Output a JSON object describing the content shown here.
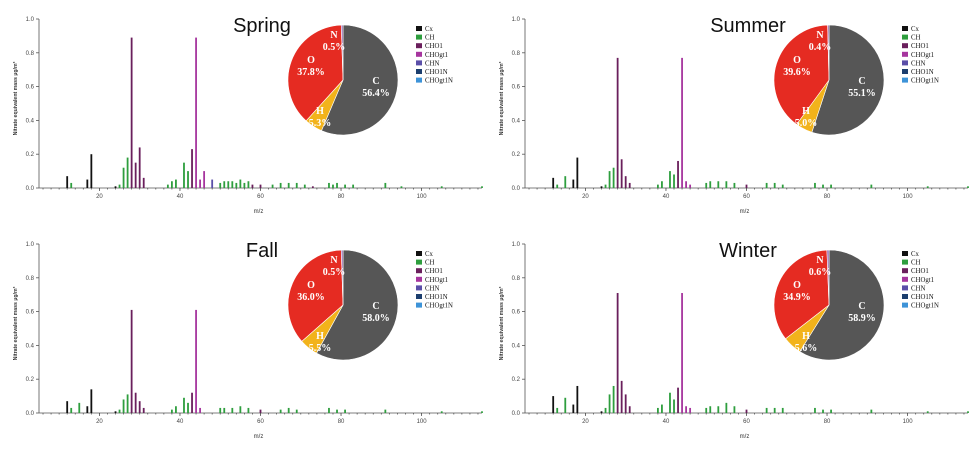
{
  "colors": {
    "Cx": "#111111",
    "CH": "#2e9e3e",
    "CHO1": "#6a1f5c",
    "CHOgt1": "#a6359e",
    "CHN": "#5a4ea8",
    "CHO1N": "#1c3e6e",
    "CHOgt1N": "#3d93d8",
    "pie_C": "#565656",
    "pie_H": "#f2b31b",
    "pie_O": "#e52b22",
    "pie_N": "#8a5aa8"
  },
  "legend": [
    "Cx",
    "CH",
    "CHO1",
    "CHOgt1",
    "CHN",
    "CHO1N",
    "CHOgt1N"
  ],
  "chart_data": [
    {
      "type": "bar",
      "title": "Spring",
      "ylabel": "Nitrate equivalent mass µg/m³",
      "xlabel": "m/z",
      "ylim": [
        0,
        1.0
      ],
      "xlim": [
        5,
        115
      ],
      "yticks": [
        "0.0",
        "0.2",
        "0.4",
        "0.6",
        "0.8",
        "1.0"
      ],
      "xticks": [
        "20",
        "40",
        "60",
        "80",
        "100"
      ],
      "bars": [
        {
          "mz": 12,
          "value": 0.07,
          "family": "Cx"
        },
        {
          "mz": 13,
          "value": 0.03,
          "family": "CH"
        },
        {
          "mz": 17,
          "value": 0.05,
          "family": "Cx"
        },
        {
          "mz": 18,
          "value": 0.2,
          "family": "Cx"
        },
        {
          "mz": 24,
          "value": 0.01,
          "family": "Cx"
        },
        {
          "mz": 25,
          "value": 0.02,
          "family": "CH"
        },
        {
          "mz": 26,
          "value": 0.12,
          "family": "CH"
        },
        {
          "mz": 27,
          "value": 0.18,
          "family": "CH"
        },
        {
          "mz": 28,
          "value": 0.89,
          "family": "CHO1"
        },
        {
          "mz": 29,
          "value": 0.15,
          "family": "CHO1"
        },
        {
          "mz": 30,
          "value": 0.24,
          "family": "CHO1"
        },
        {
          "mz": 31,
          "value": 0.06,
          "family": "CHO1"
        },
        {
          "mz": 37,
          "value": 0.02,
          "family": "CH"
        },
        {
          "mz": 38,
          "value": 0.04,
          "family": "CH"
        },
        {
          "mz": 39,
          "value": 0.05,
          "family": "CH"
        },
        {
          "mz": 41,
          "value": 0.15,
          "family": "CH"
        },
        {
          "mz": 42,
          "value": 0.1,
          "family": "CH"
        },
        {
          "mz": 43,
          "value": 0.23,
          "family": "CHO1"
        },
        {
          "mz": 44,
          "value": 0.89,
          "family": "CHOgt1"
        },
        {
          "mz": 45,
          "value": 0.05,
          "family": "CHOgt1"
        },
        {
          "mz": 46,
          "value": 0.1,
          "family": "CHOgt1"
        },
        {
          "mz": 48,
          "value": 0.05,
          "family": "CHN"
        },
        {
          "mz": 50,
          "value": 0.03,
          "family": "CH"
        },
        {
          "mz": 51,
          "value": 0.04,
          "family": "CH"
        },
        {
          "mz": 52,
          "value": 0.04,
          "family": "CH"
        },
        {
          "mz": 53,
          "value": 0.04,
          "family": "CH"
        },
        {
          "mz": 54,
          "value": 0.03,
          "family": "CH"
        },
        {
          "mz": 55,
          "value": 0.05,
          "family": "CH"
        },
        {
          "mz": 56,
          "value": 0.03,
          "family": "CH"
        },
        {
          "mz": 57,
          "value": 0.04,
          "family": "CH"
        },
        {
          "mz": 58,
          "value": 0.02,
          "family": "CHO1"
        },
        {
          "mz": 60,
          "value": 0.02,
          "family": "CHO1"
        },
        {
          "mz": 63,
          "value": 0.02,
          "family": "CH"
        },
        {
          "mz": 65,
          "value": 0.03,
          "family": "CH"
        },
        {
          "mz": 67,
          "value": 0.03,
          "family": "CH"
        },
        {
          "mz": 69,
          "value": 0.03,
          "family": "CH"
        },
        {
          "mz": 71,
          "value": 0.02,
          "family": "CH"
        },
        {
          "mz": 73,
          "value": 0.01,
          "family": "CHO1"
        },
        {
          "mz": 77,
          "value": 0.03,
          "family": "CH"
        },
        {
          "mz": 78,
          "value": 0.02,
          "family": "CH"
        },
        {
          "mz": 79,
          "value": 0.03,
          "family": "CH"
        },
        {
          "mz": 81,
          "value": 0.02,
          "family": "CH"
        },
        {
          "mz": 83,
          "value": 0.02,
          "family": "CH"
        },
        {
          "mz": 91,
          "value": 0.03,
          "family": "CH"
        },
        {
          "mz": 95,
          "value": 0.01,
          "family": "CH"
        },
        {
          "mz": 105,
          "value": 0.01,
          "family": "CH"
        },
        {
          "mz": 115,
          "value": 0.01,
          "family": "CH"
        }
      ],
      "pie": [
        {
          "label": "C",
          "value": 56.4,
          "pct": "56.4%"
        },
        {
          "label": "H",
          "value": 5.3,
          "pct": "5.3%"
        },
        {
          "label": "O",
          "value": 37.8,
          "pct": "37.8%"
        },
        {
          "label": "N",
          "value": 0.5,
          "pct": "0.5%"
        }
      ]
    },
    {
      "type": "bar",
      "title": "Summer",
      "ylabel": "Nitrate equivalent mass µg/m³",
      "xlabel": "m/z",
      "ylim": [
        0,
        1.0
      ],
      "xlim": [
        5,
        115
      ],
      "yticks": [
        "0.0",
        "0.2",
        "0.4",
        "0.6",
        "0.8",
        "1.0"
      ],
      "xticks": [
        "20",
        "40",
        "60",
        "80",
        "100"
      ],
      "bars": [
        {
          "mz": 12,
          "value": 0.06,
          "family": "Cx"
        },
        {
          "mz": 13,
          "value": 0.02,
          "family": "CH"
        },
        {
          "mz": 15,
          "value": 0.07,
          "family": "CH"
        },
        {
          "mz": 17,
          "value": 0.05,
          "family": "Cx"
        },
        {
          "mz": 18,
          "value": 0.18,
          "family": "Cx"
        },
        {
          "mz": 24,
          "value": 0.01,
          "family": "Cx"
        },
        {
          "mz": 25,
          "value": 0.02,
          "family": "CH"
        },
        {
          "mz": 26,
          "value": 0.1,
          "family": "CH"
        },
        {
          "mz": 27,
          "value": 0.12,
          "family": "CH"
        },
        {
          "mz": 28,
          "value": 0.77,
          "family": "CHO1"
        },
        {
          "mz": 29,
          "value": 0.17,
          "family": "CHO1"
        },
        {
          "mz": 30,
          "value": 0.07,
          "family": "CHO1"
        },
        {
          "mz": 31,
          "value": 0.03,
          "family": "CHO1"
        },
        {
          "mz": 38,
          "value": 0.02,
          "family": "CH"
        },
        {
          "mz": 39,
          "value": 0.04,
          "family": "CH"
        },
        {
          "mz": 41,
          "value": 0.1,
          "family": "CH"
        },
        {
          "mz": 42,
          "value": 0.08,
          "family": "CH"
        },
        {
          "mz": 43,
          "value": 0.16,
          "family": "CHO1"
        },
        {
          "mz": 44,
          "value": 0.77,
          "family": "CHOgt1"
        },
        {
          "mz": 45,
          "value": 0.04,
          "family": "CHOgt1"
        },
        {
          "mz": 46,
          "value": 0.02,
          "family": "CHOgt1"
        },
        {
          "mz": 50,
          "value": 0.03,
          "family": "CH"
        },
        {
          "mz": 51,
          "value": 0.04,
          "family": "CH"
        },
        {
          "mz": 53,
          "value": 0.04,
          "family": "CH"
        },
        {
          "mz": 55,
          "value": 0.04,
          "family": "CH"
        },
        {
          "mz": 57,
          "value": 0.03,
          "family": "CH"
        },
        {
          "mz": 60,
          "value": 0.02,
          "family": "CHO1"
        },
        {
          "mz": 65,
          "value": 0.03,
          "family": "CH"
        },
        {
          "mz": 67,
          "value": 0.03,
          "family": "CH"
        },
        {
          "mz": 69,
          "value": 0.02,
          "family": "CH"
        },
        {
          "mz": 77,
          "value": 0.03,
          "family": "CH"
        },
        {
          "mz": 79,
          "value": 0.02,
          "family": "CH"
        },
        {
          "mz": 81,
          "value": 0.02,
          "family": "CH"
        },
        {
          "mz": 91,
          "value": 0.02,
          "family": "CH"
        },
        {
          "mz": 105,
          "value": 0.01,
          "family": "CH"
        },
        {
          "mz": 115,
          "value": 0.01,
          "family": "CH"
        }
      ],
      "pie": [
        {
          "label": "C",
          "value": 55.1,
          "pct": "55.1%"
        },
        {
          "label": "H",
          "value": 5.0,
          "pct": "5.0%"
        },
        {
          "label": "O",
          "value": 39.6,
          "pct": "39.6%"
        },
        {
          "label": "N",
          "value": 0.4,
          "pct": "0.4%"
        }
      ]
    },
    {
      "type": "bar",
      "title": "Fall",
      "ylabel": "Nitrate equivalent mass µg/m³",
      "xlabel": "m/z",
      "ylim": [
        0,
        1.0
      ],
      "xlim": [
        5,
        115
      ],
      "yticks": [
        "0.0",
        "0.2",
        "0.4",
        "0.6",
        "0.8",
        "1.0"
      ],
      "xticks": [
        "20",
        "40",
        "60",
        "80",
        "100"
      ],
      "bars": [
        {
          "mz": 12,
          "value": 0.07,
          "family": "Cx"
        },
        {
          "mz": 13,
          "value": 0.03,
          "family": "CH"
        },
        {
          "mz": 15,
          "value": 0.06,
          "family": "CH"
        },
        {
          "mz": 17,
          "value": 0.04,
          "family": "Cx"
        },
        {
          "mz": 18,
          "value": 0.14,
          "family": "Cx"
        },
        {
          "mz": 24,
          "value": 0.01,
          "family": "Cx"
        },
        {
          "mz": 25,
          "value": 0.02,
          "family": "CH"
        },
        {
          "mz": 26,
          "value": 0.08,
          "family": "CH"
        },
        {
          "mz": 27,
          "value": 0.11,
          "family": "CH"
        },
        {
          "mz": 28,
          "value": 0.61,
          "family": "CHO1"
        },
        {
          "mz": 29,
          "value": 0.12,
          "family": "CHO1"
        },
        {
          "mz": 30,
          "value": 0.07,
          "family": "CHO1"
        },
        {
          "mz": 31,
          "value": 0.03,
          "family": "CHO1"
        },
        {
          "mz": 38,
          "value": 0.02,
          "family": "CH"
        },
        {
          "mz": 39,
          "value": 0.04,
          "family": "CH"
        },
        {
          "mz": 41,
          "value": 0.09,
          "family": "CH"
        },
        {
          "mz": 42,
          "value": 0.06,
          "family": "CH"
        },
        {
          "mz": 43,
          "value": 0.12,
          "family": "CHO1"
        },
        {
          "mz": 44,
          "value": 0.61,
          "family": "CHOgt1"
        },
        {
          "mz": 45,
          "value": 0.03,
          "family": "CHOgt1"
        },
        {
          "mz": 50,
          "value": 0.03,
          "family": "CH"
        },
        {
          "mz": 51,
          "value": 0.03,
          "family": "CH"
        },
        {
          "mz": 53,
          "value": 0.03,
          "family": "CH"
        },
        {
          "mz": 55,
          "value": 0.04,
          "family": "CH"
        },
        {
          "mz": 57,
          "value": 0.03,
          "family": "CH"
        },
        {
          "mz": 60,
          "value": 0.02,
          "family": "CHO1"
        },
        {
          "mz": 65,
          "value": 0.02,
          "family": "CH"
        },
        {
          "mz": 67,
          "value": 0.03,
          "family": "CH"
        },
        {
          "mz": 69,
          "value": 0.02,
          "family": "CH"
        },
        {
          "mz": 77,
          "value": 0.03,
          "family": "CH"
        },
        {
          "mz": 79,
          "value": 0.02,
          "family": "CH"
        },
        {
          "mz": 81,
          "value": 0.02,
          "family": "CH"
        },
        {
          "mz": 91,
          "value": 0.02,
          "family": "CH"
        },
        {
          "mz": 105,
          "value": 0.01,
          "family": "CH"
        },
        {
          "mz": 115,
          "value": 0.01,
          "family": "CH"
        }
      ],
      "pie": [
        {
          "label": "C",
          "value": 58.0,
          "pct": "58.0%"
        },
        {
          "label": "H",
          "value": 5.5,
          "pct": "5.5%"
        },
        {
          "label": "O",
          "value": 36.0,
          "pct": "36.0%"
        },
        {
          "label": "N",
          "value": 0.5,
          "pct": "0.5%"
        }
      ]
    },
    {
      "type": "bar",
      "title": "Winter",
      "ylabel": "Nitrate equivalent mass µg/m³",
      "xlabel": "m/z",
      "ylim": [
        0,
        1.0
      ],
      "xlim": [
        5,
        115
      ],
      "yticks": [
        "0.0",
        "0.2",
        "0.4",
        "0.6",
        "0.8",
        "1.0"
      ],
      "xticks": [
        "20",
        "40",
        "60",
        "80",
        "100"
      ],
      "bars": [
        {
          "mz": 12,
          "value": 0.1,
          "family": "Cx"
        },
        {
          "mz": 13,
          "value": 0.03,
          "family": "CH"
        },
        {
          "mz": 15,
          "value": 0.09,
          "family": "CH"
        },
        {
          "mz": 17,
          "value": 0.05,
          "family": "Cx"
        },
        {
          "mz": 18,
          "value": 0.16,
          "family": "Cx"
        },
        {
          "mz": 24,
          "value": 0.01,
          "family": "Cx"
        },
        {
          "mz": 25,
          "value": 0.03,
          "family": "CH"
        },
        {
          "mz": 26,
          "value": 0.11,
          "family": "CH"
        },
        {
          "mz": 27,
          "value": 0.16,
          "family": "CH"
        },
        {
          "mz": 28,
          "value": 0.71,
          "family": "CHO1"
        },
        {
          "mz": 29,
          "value": 0.19,
          "family": "CHO1"
        },
        {
          "mz": 30,
          "value": 0.11,
          "family": "CHO1"
        },
        {
          "mz": 31,
          "value": 0.04,
          "family": "CHO1"
        },
        {
          "mz": 38,
          "value": 0.03,
          "family": "CH"
        },
        {
          "mz": 39,
          "value": 0.05,
          "family": "CH"
        },
        {
          "mz": 41,
          "value": 0.12,
          "family": "CH"
        },
        {
          "mz": 42,
          "value": 0.08,
          "family": "CH"
        },
        {
          "mz": 43,
          "value": 0.15,
          "family": "CHO1"
        },
        {
          "mz": 44,
          "value": 0.71,
          "family": "CHOgt1"
        },
        {
          "mz": 45,
          "value": 0.04,
          "family": "CHOgt1"
        },
        {
          "mz": 46,
          "value": 0.03,
          "family": "CHOgt1"
        },
        {
          "mz": 50,
          "value": 0.03,
          "family": "CH"
        },
        {
          "mz": 51,
          "value": 0.04,
          "family": "CH"
        },
        {
          "mz": 53,
          "value": 0.04,
          "family": "CH"
        },
        {
          "mz": 55,
          "value": 0.06,
          "family": "CH"
        },
        {
          "mz": 57,
          "value": 0.04,
          "family": "CH"
        },
        {
          "mz": 60,
          "value": 0.02,
          "family": "CHO1"
        },
        {
          "mz": 65,
          "value": 0.03,
          "family": "CH"
        },
        {
          "mz": 67,
          "value": 0.03,
          "family": "CH"
        },
        {
          "mz": 69,
          "value": 0.03,
          "family": "CH"
        },
        {
          "mz": 77,
          "value": 0.03,
          "family": "CH"
        },
        {
          "mz": 79,
          "value": 0.02,
          "family": "CH"
        },
        {
          "mz": 81,
          "value": 0.02,
          "family": "CH"
        },
        {
          "mz": 91,
          "value": 0.02,
          "family": "CH"
        },
        {
          "mz": 105,
          "value": 0.01,
          "family": "CH"
        },
        {
          "mz": 115,
          "value": 0.01,
          "family": "CH"
        }
      ],
      "pie": [
        {
          "label": "C",
          "value": 58.9,
          "pct": "58.9%"
        },
        {
          "label": "H",
          "value": 5.6,
          "pct": "5.6%"
        },
        {
          "label": "O",
          "value": 34.9,
          "pct": "34.9%"
        },
        {
          "label": "N",
          "value": 0.6,
          "pct": "0.6%"
        }
      ]
    }
  ]
}
